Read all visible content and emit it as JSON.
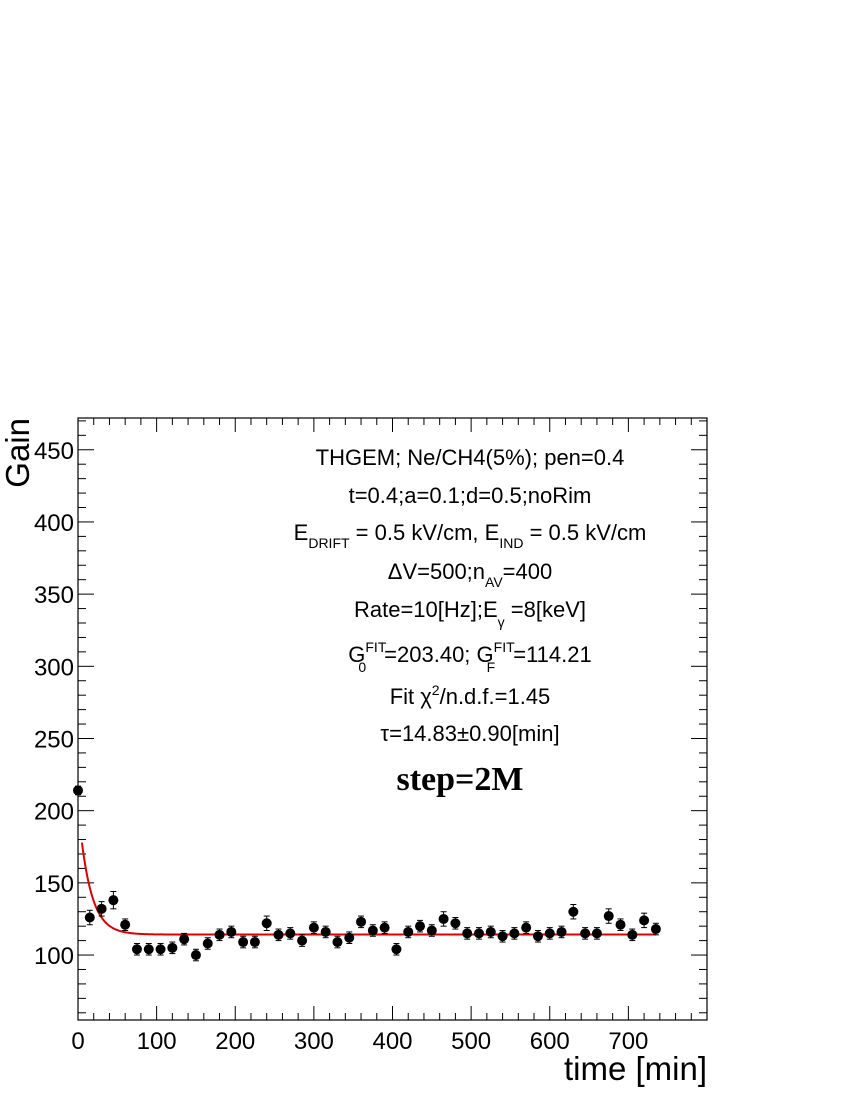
{
  "chart_data": {
    "type": "scatter",
    "xlabel": "time [min]",
    "ylabel": "Gain",
    "xlim": [
      0,
      800
    ],
    "ylim": [
      55,
      472
    ],
    "x_ticks": [
      0,
      100,
      200,
      300,
      400,
      500,
      600,
      700
    ],
    "y_ticks": [
      100,
      150,
      200,
      250,
      300,
      350,
      400,
      450
    ],
    "series": [
      {
        "x": [
          0,
          15,
          30,
          45,
          60,
          75,
          90,
          105,
          120,
          135,
          150,
          165,
          180,
          195,
          210,
          225,
          240,
          255,
          270,
          285,
          300,
          315,
          330,
          345,
          360,
          375,
          390,
          405,
          420,
          435,
          450,
          465,
          480,
          495,
          510,
          525,
          540,
          555,
          570,
          585,
          600,
          615,
          630,
          645,
          660,
          675,
          690,
          705,
          720,
          735
        ],
        "y": [
          214,
          126,
          132,
          138,
          121,
          104,
          104,
          104,
          105,
          111,
          100,
          108,
          114,
          116,
          109,
          109,
          122,
          114,
          115,
          110,
          119,
          116,
          109,
          112,
          123,
          117,
          119,
          104,
          116,
          120,
          117,
          125,
          122,
          115,
          115,
          116,
          113,
          115,
          119,
          113,
          115,
          116,
          130,
          115,
          115,
          127,
          121,
          114,
          124,
          118
        ],
        "err": [
          3,
          5,
          5,
          6,
          4,
          4,
          4,
          4,
          4,
          4,
          4,
          4,
          4,
          4,
          4,
          4,
          5,
          4,
          4,
          4,
          4,
          4,
          4,
          4,
          4,
          4,
          4,
          4,
          4,
          4,
          4,
          5,
          4,
          4,
          4,
          4,
          4,
          4,
          4,
          4,
          4,
          4,
          5,
          4,
          4,
          5,
          4,
          4,
          5,
          4
        ]
      }
    ],
    "fit": {
      "G0": 203.4,
      "GF": 114.21,
      "tau": 14.83,
      "x_range": [
        5,
        735
      ],
      "color": "#e00000"
    },
    "marker_color": "#000000",
    "annotations": {
      "line1": "THGEM; Ne/CH4(5%); pen=0.4",
      "line2": "t=0.4;a=0.1;d=0.5;noRim",
      "line3": {
        "a": "E",
        "a_sub": "DRIFT",
        "b": " = 0.5 kV/cm, E",
        "b_sub": "IND",
        "c": " = 0.5 kV/cm"
      },
      "line4": {
        "a": "ΔV=500;n",
        "a_sub": "AV",
        "b": "=400"
      },
      "line5": {
        "a": "Rate=10[Hz];E",
        "a_sub": "γ",
        "b": " =8[keV]"
      },
      "line6": {
        "a": "G",
        "a_sup": "FIT",
        "a_sub": "0",
        "b": "=203.40; G",
        "b_sup": "FIT",
        "b_sub": "F",
        "c": "=114.21"
      },
      "line7": {
        "a": "Fit χ",
        "a_sup": "2",
        "b": "/n.d.f.=1.45"
      },
      "line8": "τ=14.83±0.90[min]",
      "step": "step=2M"
    }
  }
}
